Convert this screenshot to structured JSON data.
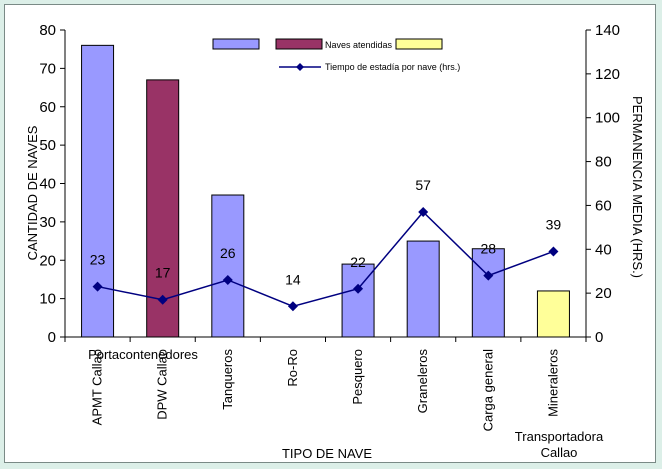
{
  "chart_data": {
    "type": "bar",
    "categories": [
      "APMT Callao",
      "DPW Callao",
      "Tanqueros",
      "Ro-Ro",
      "Pesquero",
      "Graneleros",
      "Carga general",
      "Mineraleros"
    ],
    "bar_values": [
      76,
      67,
      37,
      0,
      19,
      25,
      23,
      12
    ],
    "bar_colors": [
      "#9999ff",
      "#993366",
      "#9999ff",
      "#9999ff",
      "#9999ff",
      "#9999ff",
      "#9999ff",
      "#ffff99"
    ],
    "line_values": [
      23,
      17,
      26,
      14,
      22,
      57,
      28,
      39
    ],
    "line_color": "#000080",
    "legend": {
      "bar_series": "Naves atendidas",
      "line_series": "Tiempo de estadía por nave (hrs.)"
    },
    "group_labels": {
      "portacontenedores": "Portacontenedores",
      "transportadora": "Transportadora Callao"
    },
    "xlabel": "TIPO DE NAVE",
    "ylabel_left": "CANTIDAD DE NAVES",
    "ylabel_right": "PERMANENCIA MEDIA (HRS.)",
    "ylim_left": [
      0,
      80
    ],
    "ylim_right": [
      0,
      140
    ],
    "yticks_left": [
      "0",
      "10",
      "20",
      "30",
      "40",
      "50",
      "60",
      "70",
      "80"
    ],
    "yticks_right": [
      "0",
      "20",
      "40",
      "60",
      "80",
      "100",
      "120",
      "140"
    ],
    "grid": false
  }
}
